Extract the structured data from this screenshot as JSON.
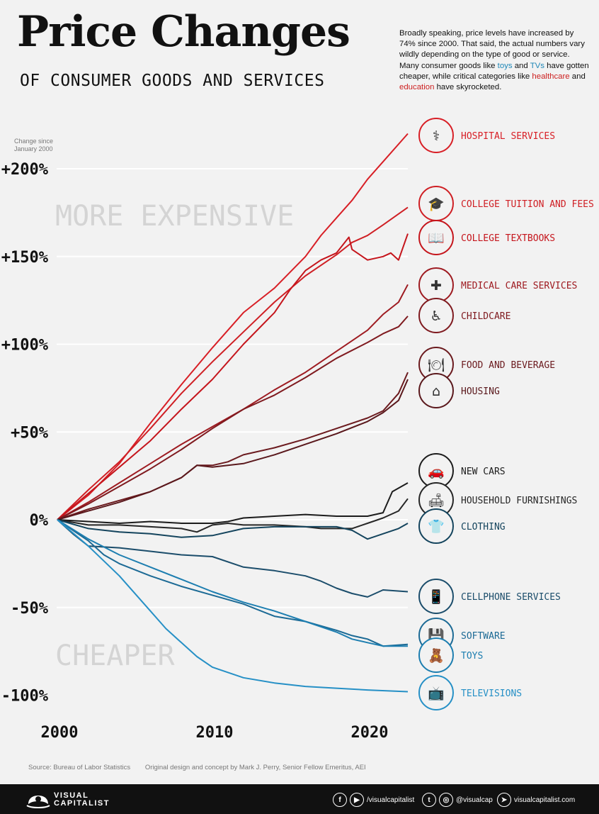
{
  "header": {
    "title": "Price Changes",
    "subtitle": "OF CONSUMER GOODS AND SERVICES",
    "intro_parts": [
      {
        "text": "Broadly speaking, price levels have increased by 74% since 2000. That said, the actual numbers vary wildly depending on the type of good or service. Many consumer goods like ",
        "style": "plain"
      },
      {
        "text": "toys",
        "style": "blue"
      },
      {
        "text": " and ",
        "style": "plain"
      },
      {
        "text": "TVs",
        "style": "blue"
      },
      {
        "text": " have gotten cheaper, while critical categories like ",
        "style": "plain"
      },
      {
        "text": "healthcare",
        "style": "red"
      },
      {
        "text": " and ",
        "style": "plain"
      },
      {
        "text": "education",
        "style": "red"
      },
      {
        "text": " have skyrocketed.",
        "style": "plain"
      }
    ]
  },
  "axis_note": "Change since January 2000",
  "zones": {
    "upper": "MORE EXPENSIVE",
    "lower": "CHEAPER"
  },
  "chart_data": {
    "type": "line",
    "title": "Price Changes of Consumer Goods and Services",
    "ylabel": "Change since January 2000",
    "xlim": [
      2000,
      2022.6
    ],
    "ylim": [
      -100,
      200
    ],
    "y_ticks": [
      200,
      150,
      100,
      50,
      0,
      -50,
      -100
    ],
    "y_tick_labels": [
      "+200%",
      "+150%",
      "+100%",
      "+50%",
      "0%",
      "-50%",
      "-100%"
    ],
    "x_ticks": [
      2000,
      2010,
      2020
    ],
    "x_tick_labels": [
      "2000",
      "2010",
      "2020"
    ],
    "series": [
      {
        "name": "HOSPITAL SERVICES",
        "color": "#d81f26",
        "icon": "iv-drip-icon",
        "points": [
          [
            2000,
            0
          ],
          [
            2002,
            14
          ],
          [
            2004,
            32
          ],
          [
            2006,
            55
          ],
          [
            2008,
            77
          ],
          [
            2010,
            98
          ],
          [
            2012,
            118
          ],
          [
            2014,
            132
          ],
          [
            2016,
            150
          ],
          [
            2017,
            162
          ],
          [
            2018,
            172
          ],
          [
            2019,
            182
          ],
          [
            2020,
            194
          ],
          [
            2021,
            204
          ],
          [
            2022.6,
            220
          ]
        ]
      },
      {
        "name": "COLLEGE TUITION AND FEES",
        "color": "#cf1f24",
        "icon": "graduation-cap-icon",
        "points": [
          [
            2000,
            0
          ],
          [
            2002,
            17
          ],
          [
            2004,
            33
          ],
          [
            2006,
            52
          ],
          [
            2008,
            72
          ],
          [
            2010,
            90
          ],
          [
            2012,
            107
          ],
          [
            2014,
            124
          ],
          [
            2016,
            139
          ],
          [
            2018,
            151
          ],
          [
            2019,
            158
          ],
          [
            2020,
            162
          ],
          [
            2021,
            168
          ],
          [
            2022.6,
            178
          ]
        ]
      },
      {
        "name": "COLLEGE TEXTBOOKS",
        "color": "#c5151c",
        "icon": "textbook-icon",
        "points": [
          [
            2000,
            0
          ],
          [
            2002,
            15
          ],
          [
            2004,
            30
          ],
          [
            2006,
            45
          ],
          [
            2008,
            63
          ],
          [
            2010,
            80
          ],
          [
            2012,
            100
          ],
          [
            2014,
            118
          ],
          [
            2015,
            131
          ],
          [
            2016,
            142
          ],
          [
            2017,
            148
          ],
          [
            2018,
            152
          ],
          [
            2018.8,
            161
          ],
          [
            2019,
            154
          ],
          [
            2020,
            148
          ],
          [
            2021,
            150
          ],
          [
            2021.5,
            152
          ],
          [
            2022,
            148
          ],
          [
            2022.6,
            163
          ]
        ]
      },
      {
        "name": "MEDICAL CARE SERVICES",
        "color": "#9e1b21",
        "icon": "medical-kit-icon",
        "points": [
          [
            2000,
            0
          ],
          [
            2002,
            10
          ],
          [
            2004,
            21
          ],
          [
            2006,
            32
          ],
          [
            2008,
            43
          ],
          [
            2010,
            53
          ],
          [
            2012,
            63
          ],
          [
            2014,
            74
          ],
          [
            2016,
            84
          ],
          [
            2018,
            96
          ],
          [
            2020,
            108
          ],
          [
            2021,
            117
          ],
          [
            2022,
            124
          ],
          [
            2022.6,
            134
          ]
        ]
      },
      {
        "name": "CHILDCARE",
        "color": "#7f1a1f",
        "icon": "stroller-icon",
        "points": [
          [
            2000,
            0
          ],
          [
            2002,
            9
          ],
          [
            2004,
            19
          ],
          [
            2006,
            29
          ],
          [
            2008,
            40
          ],
          [
            2010,
            52
          ],
          [
            2012,
            63
          ],
          [
            2014,
            71
          ],
          [
            2016,
            81
          ],
          [
            2018,
            92
          ],
          [
            2020,
            101
          ],
          [
            2021,
            106
          ],
          [
            2022,
            110
          ],
          [
            2022.6,
            116
          ]
        ]
      },
      {
        "name": "FOOD AND BEVERAGE",
        "color": "#6b1a1e",
        "icon": "food-icon",
        "points": [
          [
            2000,
            0
          ],
          [
            2002,
            6
          ],
          [
            2004,
            11
          ],
          [
            2006,
            16
          ],
          [
            2008,
            24
          ],
          [
            2009,
            31
          ],
          [
            2010,
            31
          ],
          [
            2011,
            33
          ],
          [
            2012,
            37
          ],
          [
            2014,
            41
          ],
          [
            2016,
            46
          ],
          [
            2018,
            52
          ],
          [
            2020,
            58
          ],
          [
            2021,
            62
          ],
          [
            2022,
            72
          ],
          [
            2022.6,
            84
          ]
        ]
      },
      {
        "name": "HOUSING",
        "color": "#5a181c",
        "icon": "house-icon",
        "points": [
          [
            2000,
            0
          ],
          [
            2002,
            5
          ],
          [
            2004,
            10
          ],
          [
            2006,
            16
          ],
          [
            2008,
            24
          ],
          [
            2009,
            31
          ],
          [
            2010,
            30
          ],
          [
            2012,
            32
          ],
          [
            2014,
            37
          ],
          [
            2016,
            43
          ],
          [
            2018,
            49
          ],
          [
            2020,
            56
          ],
          [
            2021,
            61
          ],
          [
            2022,
            68
          ],
          [
            2022.6,
            80
          ]
        ]
      },
      {
        "name": "NEW CARS",
        "color": "#1c1c1c",
        "icon": "car-icon",
        "points": [
          [
            2000,
            0
          ],
          [
            2002,
            -1
          ],
          [
            2004,
            -2
          ],
          [
            2006,
            -1
          ],
          [
            2008,
            -2
          ],
          [
            2010,
            -2
          ],
          [
            2011,
            -1
          ],
          [
            2012,
            1
          ],
          [
            2014,
            2
          ],
          [
            2016,
            3
          ],
          [
            2018,
            2
          ],
          [
            2019,
            2
          ],
          [
            2020,
            2
          ],
          [
            2021,
            4
          ],
          [
            2021.6,
            16
          ],
          [
            2022.6,
            21
          ]
        ]
      },
      {
        "name": "HOUSEHOLD FURNISHINGS",
        "color": "#262626",
        "icon": "sofa-icon",
        "points": [
          [
            2000,
            0
          ],
          [
            2002,
            -3
          ],
          [
            2004,
            -3
          ],
          [
            2006,
            -4
          ],
          [
            2008,
            -5
          ],
          [
            2009,
            -7
          ],
          [
            2010,
            -3
          ],
          [
            2011,
            -2
          ],
          [
            2012,
            -3
          ],
          [
            2014,
            -3
          ],
          [
            2016,
            -4
          ],
          [
            2017,
            -5
          ],
          [
            2018,
            -5
          ],
          [
            2019,
            -5
          ],
          [
            2020,
            -2
          ],
          [
            2021,
            1
          ],
          [
            2022,
            5
          ],
          [
            2022.6,
            12
          ]
        ]
      },
      {
        "name": "CLOTHING",
        "color": "#14445d",
        "icon": "shirt-icon",
        "points": [
          [
            2000,
            0
          ],
          [
            2002,
            -5
          ],
          [
            2004,
            -7
          ],
          [
            2006,
            -8
          ],
          [
            2008,
            -10
          ],
          [
            2010,
            -9
          ],
          [
            2012,
            -5
          ],
          [
            2014,
            -4
          ],
          [
            2016,
            -4
          ],
          [
            2018,
            -4
          ],
          [
            2019,
            -6
          ],
          [
            2020,
            -11
          ],
          [
            2021,
            -8
          ],
          [
            2022,
            -5
          ],
          [
            2022.6,
            -2
          ]
        ]
      },
      {
        "name": "CELLPHONE SERVICES",
        "color": "#1b4d6b",
        "icon": "cellphone-icon",
        "points": [
          [
            2000,
            0
          ],
          [
            2001,
            -8
          ],
          [
            2002,
            -15
          ],
          [
            2004,
            -16
          ],
          [
            2006,
            -18
          ],
          [
            2008,
            -20
          ],
          [
            2010,
            -21
          ],
          [
            2012,
            -27
          ],
          [
            2014,
            -29
          ],
          [
            2016,
            -32
          ],
          [
            2017,
            -35
          ],
          [
            2018,
            -39
          ],
          [
            2019,
            -42
          ],
          [
            2020,
            -44
          ],
          [
            2021,
            -40
          ],
          [
            2022.6,
            -41
          ]
        ]
      },
      {
        "name": "SOFTWARE",
        "color": "#1c6a95",
        "icon": "software-icon",
        "points": [
          [
            2000,
            0
          ],
          [
            2002,
            -12
          ],
          [
            2003,
            -20
          ],
          [
            2004,
            -25
          ],
          [
            2006,
            -32
          ],
          [
            2008,
            -38
          ],
          [
            2010,
            -43
          ],
          [
            2012,
            -48
          ],
          [
            2014,
            -55
          ],
          [
            2016,
            -58
          ],
          [
            2018,
            -63
          ],
          [
            2019,
            -66
          ],
          [
            2020,
            -68
          ],
          [
            2021,
            -72
          ],
          [
            2022.6,
            -71
          ]
        ]
      },
      {
        "name": "TOYS",
        "color": "#1d7eb0",
        "icon": "toys-icon",
        "points": [
          [
            2000,
            0
          ],
          [
            2002,
            -11
          ],
          [
            2004,
            -20
          ],
          [
            2006,
            -27
          ],
          [
            2008,
            -34
          ],
          [
            2010,
            -41
          ],
          [
            2012,
            -47
          ],
          [
            2014,
            -52
          ],
          [
            2016,
            -58
          ],
          [
            2018,
            -64
          ],
          [
            2019,
            -68
          ],
          [
            2020,
            -70
          ],
          [
            2021,
            -72
          ],
          [
            2022.6,
            -72
          ]
        ]
      },
      {
        "name": "TELEVISIONS",
        "color": "#2690c6",
        "icon": "tv-icon",
        "points": [
          [
            2000,
            0
          ],
          [
            2002,
            -15
          ],
          [
            2004,
            -32
          ],
          [
            2006,
            -52
          ],
          [
            2007,
            -62
          ],
          [
            2008,
            -70
          ],
          [
            2009,
            -78
          ],
          [
            2010,
            -84
          ],
          [
            2012,
            -90
          ],
          [
            2014,
            -93
          ],
          [
            2016,
            -95
          ],
          [
            2018,
            -96
          ],
          [
            2020,
            -97
          ],
          [
            2022.6,
            -98
          ]
        ]
      }
    ]
  },
  "footer": {
    "source": "Source: Bureau of Labor Statistics",
    "credit": "Original design and concept by Mark J. Perry, Senior Fellow Emeritus, AEI",
    "brand_line1": "VISUAL",
    "brand_line2": "CAPITALIST",
    "social_handle_1": "/visualcapitalist",
    "social_handle_2": "@visualcap",
    "website": "visualcapitalist.com"
  }
}
